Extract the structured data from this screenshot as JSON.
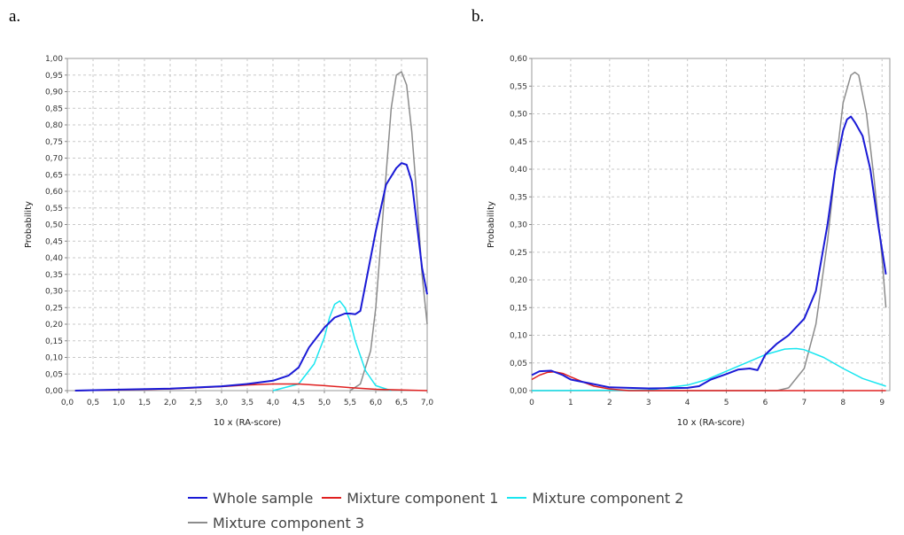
{
  "panels": [
    {
      "letter": "a.",
      "chart_data": {
        "type": "line",
        "xlabel": "10 x (RA-score)",
        "ylabel": "Probability",
        "xlim": [
          0,
          7
        ],
        "ylim": [
          0,
          1
        ],
        "xticks": [
          "0,0",
          "0,5",
          "1,0",
          "1,5",
          "2,0",
          "2,5",
          "3,0",
          "3,5",
          "4,0",
          "4,5",
          "5,0",
          "5,5",
          "6,0",
          "6,5",
          "7,0"
        ],
        "yticks": [
          "0,00",
          "0,05",
          "0,10",
          "0,15",
          "0,20",
          "0,25",
          "0,30",
          "0,35",
          "0,40",
          "0,45",
          "0,50",
          "0,55",
          "0,60",
          "0,65",
          "0,70",
          "0,75",
          "0,80",
          "0,85",
          "0,90",
          "0,95",
          "1,00"
        ],
        "grid": true,
        "series": [
          {
            "name": "Whole sample",
            "color": "#1a1ad6",
            "x": [
              0.15,
              1.0,
              2.0,
              3.0,
              3.5,
              4.0,
              4.3,
              4.5,
              4.7,
              5.0,
              5.2,
              5.4,
              5.5,
              5.6,
              5.7,
              5.8,
              6.0,
              6.2,
              6.4,
              6.5,
              6.6,
              6.7,
              6.8,
              6.9,
              7.0
            ],
            "y": [
              0.0,
              0.003,
              0.006,
              0.013,
              0.02,
              0.03,
              0.045,
              0.07,
              0.13,
              0.19,
              0.22,
              0.232,
              0.232,
              0.23,
              0.24,
              0.32,
              0.48,
              0.62,
              0.67,
              0.685,
              0.68,
              0.63,
              0.5,
              0.37,
              0.29
            ]
          },
          {
            "name": "Mixture component 1",
            "color": "#e02020",
            "x": [
              0.15,
              1.0,
              2.0,
              3.0,
              3.5,
              4.0,
              4.5,
              5.0,
              5.5,
              6.0,
              6.5,
              7.0
            ],
            "y": [
              0.0,
              0.002,
              0.005,
              0.012,
              0.017,
              0.02,
              0.02,
              0.015,
              0.009,
              0.004,
              0.002,
              0.0
            ]
          },
          {
            "name": "Mixture component 2",
            "color": "#19e6f0",
            "x": [
              4.0,
              4.5,
              4.8,
              5.0,
              5.1,
              5.2,
              5.3,
              5.4,
              5.5,
              5.6,
              5.8,
              6.0,
              6.3
            ],
            "y": [
              0.0,
              0.02,
              0.08,
              0.16,
              0.22,
              0.26,
              0.27,
              0.25,
              0.21,
              0.15,
              0.06,
              0.015,
              0.0
            ]
          },
          {
            "name": "Mixture component 3",
            "color": "#8c8c8c",
            "x": [
              5.5,
              5.7,
              5.9,
              6.0,
              6.1,
              6.2,
              6.3,
              6.4,
              6.5,
              6.6,
              6.7,
              6.8,
              6.9,
              7.0
            ],
            "y": [
              0.0,
              0.02,
              0.12,
              0.25,
              0.45,
              0.65,
              0.85,
              0.95,
              0.96,
              0.92,
              0.78,
              0.58,
              0.35,
              0.2
            ]
          }
        ]
      }
    },
    {
      "letter": "b.",
      "chart_data": {
        "type": "line",
        "xlabel": "10 x (RA-score)",
        "ylabel": "Probability",
        "xlim": [
          0,
          9.2
        ],
        "ylim": [
          0,
          0.6
        ],
        "xticks": [
          "0",
          "1",
          "2",
          "3",
          "4",
          "5",
          "6",
          "7",
          "8",
          "9"
        ],
        "yticks": [
          "0,00",
          "0,05",
          "0,10",
          "0,15",
          "0,20",
          "0,25",
          "0,30",
          "0,35",
          "0,40",
          "0,45",
          "0,50",
          "0,55",
          "0,60"
        ],
        "grid": true,
        "series": [
          {
            "name": "Whole sample",
            "color": "#1a1ad6",
            "x": [
              0.0,
              0.2,
              0.5,
              0.8,
              1.0,
              1.5,
              2.0,
              3.0,
              4.0,
              4.3,
              4.6,
              5.0,
              5.3,
              5.6,
              5.8,
              6.0,
              6.3,
              6.6,
              7.0,
              7.3,
              7.6,
              7.8,
              8.0,
              8.1,
              8.2,
              8.3,
              8.5,
              8.7,
              8.9,
              9.1
            ],
            "y": [
              0.028,
              0.035,
              0.036,
              0.028,
              0.02,
              0.013,
              0.006,
              0.004,
              0.005,
              0.008,
              0.02,
              0.03,
              0.038,
              0.04,
              0.037,
              0.065,
              0.085,
              0.1,
              0.13,
              0.18,
              0.3,
              0.4,
              0.47,
              0.49,
              0.495,
              0.485,
              0.46,
              0.4,
              0.3,
              0.21
            ]
          },
          {
            "name": "Mixture component 1",
            "color": "#e02020",
            "x": [
              0.0,
              0.2,
              0.4,
              0.6,
              0.8,
              1.0,
              1.3,
              1.6,
              2.0,
              2.5,
              3.0,
              9.1
            ],
            "y": [
              0.02,
              0.028,
              0.033,
              0.034,
              0.031,
              0.025,
              0.016,
              0.008,
              0.003,
              0.0,
              0.0,
              0.0
            ]
          },
          {
            "name": "Mixture component 2",
            "color": "#19e6f0",
            "x": [
              0.0,
              3.0,
              4.0,
              4.5,
              5.0,
              5.5,
              6.0,
              6.5,
              6.8,
              7.0,
              7.5,
              8.0,
              8.5,
              9.1
            ],
            "y": [
              0.0,
              0.001,
              0.01,
              0.02,
              0.035,
              0.05,
              0.065,
              0.075,
              0.076,
              0.074,
              0.06,
              0.04,
              0.022,
              0.008
            ]
          },
          {
            "name": "Mixture component 3",
            "color": "#8c8c8c",
            "x": [
              0.0,
              6.3,
              6.6,
              7.0,
              7.3,
              7.6,
              7.8,
              8.0,
              8.2,
              8.3,
              8.4,
              8.6,
              8.8,
              9.0,
              9.1
            ],
            "y": [
              0.0,
              0.0,
              0.005,
              0.04,
              0.12,
              0.27,
              0.4,
              0.52,
              0.57,
              0.575,
              0.57,
              0.5,
              0.38,
              0.24,
              0.15
            ]
          }
        ]
      }
    }
  ],
  "legend": {
    "items": [
      {
        "label": "Whole sample",
        "color": "#1a1ad6"
      },
      {
        "label": "Mixture component 1",
        "color": "#e02020"
      },
      {
        "label": "Mixture component 2",
        "color": "#19e6f0"
      },
      {
        "label": "Mixture component 3",
        "color": "#8c8c8c"
      }
    ]
  }
}
